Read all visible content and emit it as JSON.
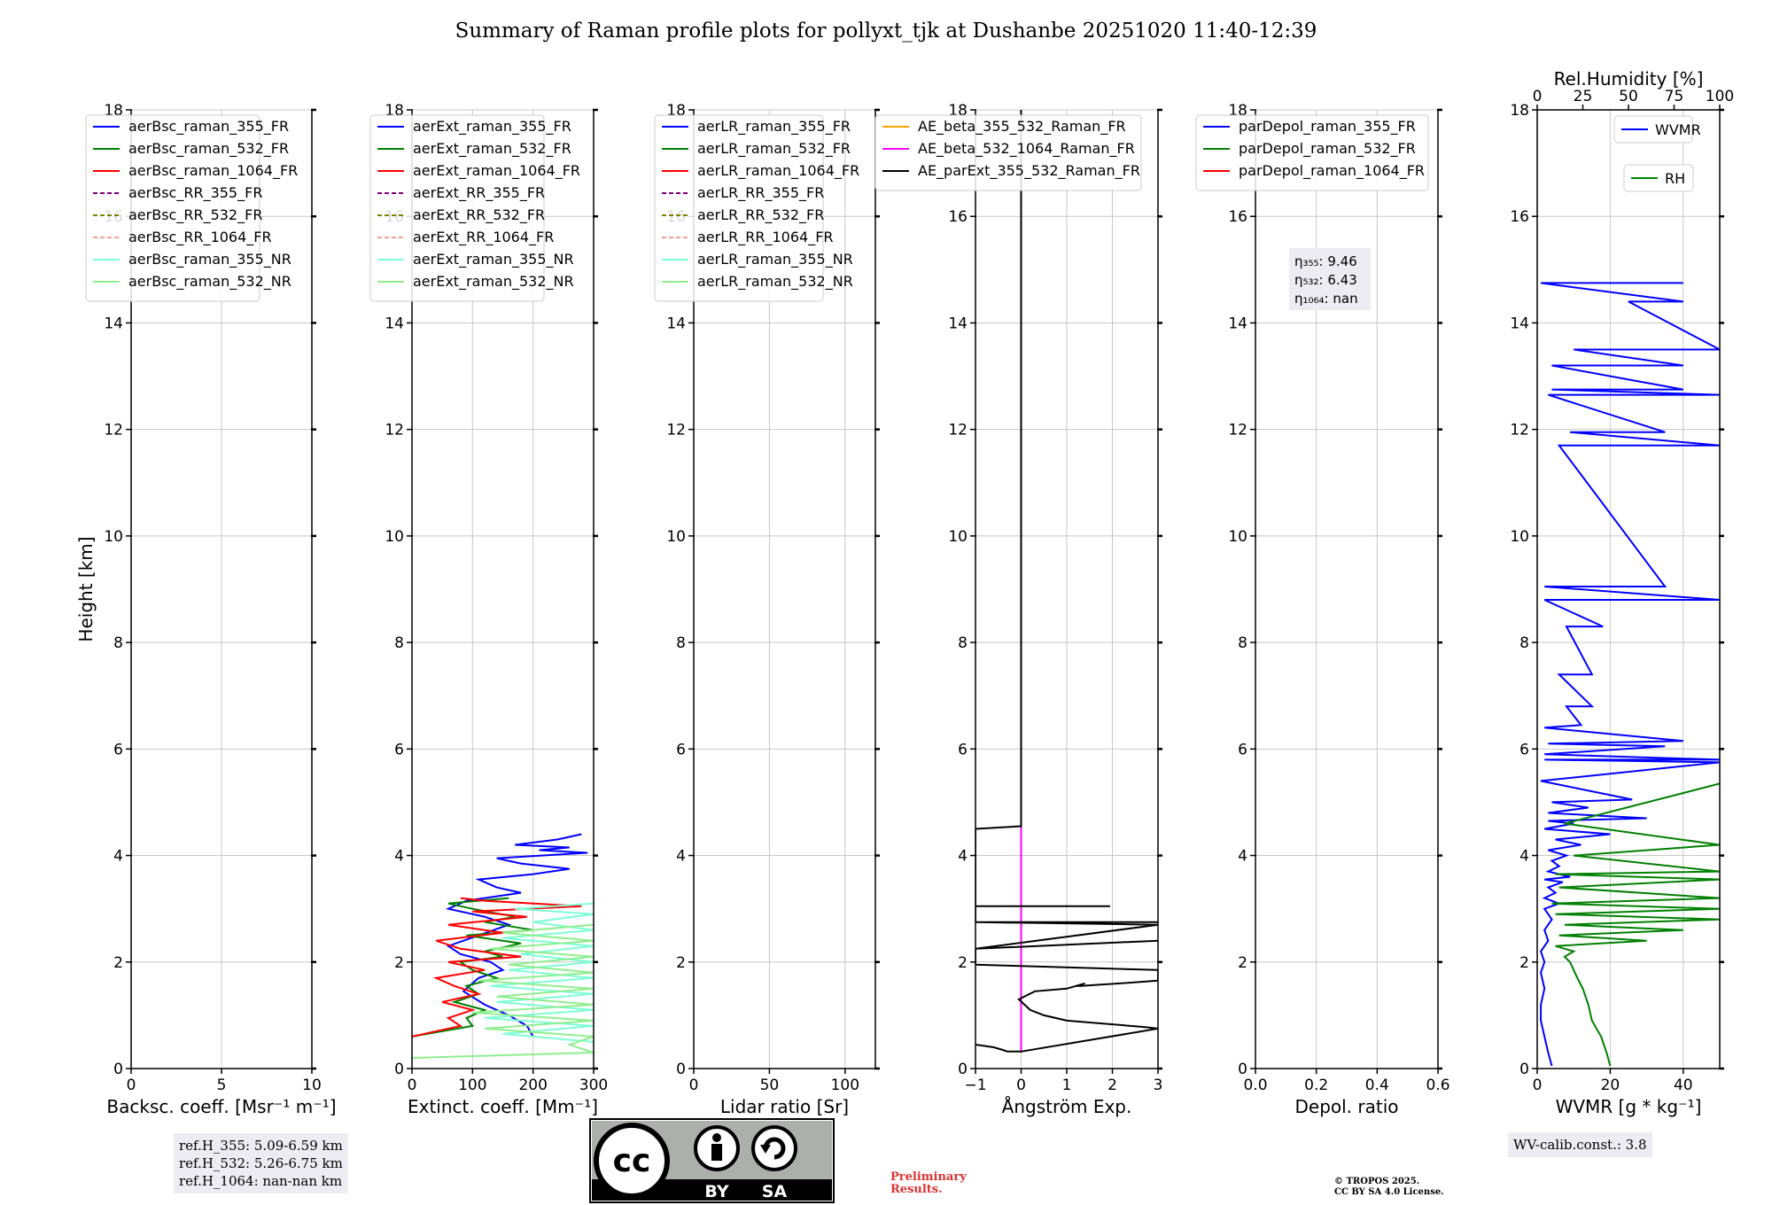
{
  "title": "Summary of Raman profile plots for pollyxt_tjk at Dushanbe 20251020 11:40-12:39",
  "chart_data": [
    {
      "type": "line",
      "xlabel": "Backsc. coeff. [Msr⁻¹ m⁻¹]",
      "ylabel": "Height [km]",
      "xlim": [
        0,
        10
      ],
      "ylim": [
        0,
        18
      ],
      "xticks": [
        0,
        5,
        10
      ],
      "yticks": [
        0,
        2,
        4,
        6,
        8,
        10,
        12,
        14,
        16,
        18
      ],
      "grid": true,
      "legend_position": "top-left",
      "series": [
        {
          "name": "aerBsc_raman_355_FR",
          "color": "#0000ff",
          "dash": "solid",
          "x": [],
          "y": []
        },
        {
          "name": "aerBsc_raman_532_FR",
          "color": "#008000",
          "dash": "solid",
          "x": [],
          "y": []
        },
        {
          "name": "aerBsc_raman_1064_FR",
          "color": "#ff0000",
          "dash": "solid",
          "x": [],
          "y": []
        },
        {
          "name": "aerBsc_RR_355_FR",
          "color": "#800080",
          "dash": "dashed",
          "x": [],
          "y": []
        },
        {
          "name": "aerBsc_RR_532_FR",
          "color": "#808000",
          "dash": "dashed",
          "x": [],
          "y": []
        },
        {
          "name": "aerBsc_RR_1064_FR",
          "color": "#f4a090",
          "dash": "dashed",
          "x": [],
          "y": []
        },
        {
          "name": "aerBsc_raman_355_NR",
          "color": "#7fffd4",
          "dash": "solid",
          "x": [],
          "y": []
        },
        {
          "name": "aerBsc_raman_532_NR",
          "color": "#90ee90",
          "dash": "solid",
          "x": [],
          "y": []
        }
      ]
    },
    {
      "type": "line",
      "xlabel": "Extinct. coeff. [Mm⁻¹]",
      "ylabel": "",
      "xlim": [
        0,
        300
      ],
      "ylim": [
        0,
        18
      ],
      "xticks": [
        0,
        100,
        200,
        300
      ],
      "yticks": [
        0,
        2,
        4,
        6,
        8,
        10,
        12,
        14,
        16,
        18
      ],
      "grid": true,
      "legend_position": "top-left",
      "series": [
        {
          "name": "aerExt_raman_355_FR",
          "color": "#0000ff",
          "dash": "solid",
          "x": [
            200,
            190,
            160,
            120,
            85,
            110,
            150,
            130,
            80,
            60,
            110,
            160,
            120,
            60,
            90,
            180,
            140,
            110,
            200,
            260,
            180,
            140,
            290,
            210,
            260,
            170,
            240,
            280
          ],
          "y": [
            0.6,
            0.8,
            1.0,
            1.2,
            1.45,
            1.7,
            1.85,
            2.0,
            2.15,
            2.3,
            2.5,
            2.7,
            2.85,
            3.0,
            3.15,
            3.3,
            3.4,
            3.55,
            3.65,
            3.75,
            3.85,
            3.95,
            4.05,
            4.1,
            4.15,
            4.2,
            4.3,
            4.4
          ]
        },
        {
          "name": "aerExt_raman_532_FR",
          "color": "#008000",
          "dash": "solid",
          "x": [
            0,
            100,
            90,
            120,
            70,
            110,
            90,
            140,
            100,
            80,
            150,
            120,
            180,
            90,
            200,
            120,
            170,
            100,
            60,
            160
          ],
          "y": [
            0.6,
            0.8,
            0.95,
            1.1,
            1.25,
            1.4,
            1.55,
            1.7,
            1.85,
            2.0,
            2.1,
            2.2,
            2.35,
            2.5,
            2.6,
            2.75,
            2.85,
            3.0,
            3.1,
            3.2
          ]
        },
        {
          "name": "aerExt_raman_1064_FR",
          "color": "#ff0000",
          "dash": "solid",
          "x": [
            0,
            80,
            60,
            100,
            50,
            110,
            70,
            40,
            120,
            60,
            180,
            80,
            40,
            150,
            60,
            190,
            100,
            280,
            120,
            80
          ],
          "y": [
            0.6,
            0.8,
            0.95,
            1.1,
            1.25,
            1.4,
            1.55,
            1.7,
            1.85,
            2.0,
            2.1,
            2.25,
            2.4,
            2.55,
            2.7,
            2.85,
            2.95,
            3.05,
            3.15,
            3.2
          ]
        },
        {
          "name": "aerExt_RR_355_FR",
          "color": "#800080",
          "dash": "dashed",
          "x": [],
          "y": []
        },
        {
          "name": "aerExt_RR_532_FR",
          "color": "#808000",
          "dash": "dashed",
          "x": [],
          "y": []
        },
        {
          "name": "aerExt_RR_1064_FR",
          "color": "#f4a090",
          "dash": "dashed",
          "x": [],
          "y": []
        },
        {
          "name": "aerExt_raman_355_NR",
          "color": "#7fffd4",
          "dash": "solid",
          "x": [
            300,
            150,
            300,
            120,
            300,
            140,
            300,
            130,
            300,
            160,
            300,
            180,
            300,
            150,
            300,
            200,
            300,
            170,
            300
          ],
          "y": [
            0.5,
            0.65,
            0.8,
            0.95,
            1.1,
            1.25,
            1.4,
            1.55,
            1.7,
            1.85,
            2.0,
            2.15,
            2.3,
            2.45,
            2.6,
            2.75,
            2.9,
            3.0,
            3.1
          ]
        },
        {
          "name": "aerExt_raman_532_NR",
          "color": "#90ee90",
          "dash": "solid",
          "x": [
            0,
            300,
            260,
            300,
            120,
            300,
            100,
            300,
            140,
            300,
            110,
            300,
            160,
            300,
            130,
            300,
            150,
            300
          ],
          "y": [
            0.2,
            0.3,
            0.45,
            0.6,
            0.75,
            0.9,
            1.05,
            1.2,
            1.35,
            1.5,
            1.65,
            1.8,
            1.95,
            2.1,
            2.25,
            2.4,
            2.55,
            2.7
          ]
        }
      ]
    },
    {
      "type": "line",
      "xlabel": "Lidar ratio [Sr]",
      "ylabel": "",
      "xlim": [
        0,
        120
      ],
      "ylim": [
        0,
        18
      ],
      "xticks": [
        0,
        50,
        100
      ],
      "yticks": [
        0,
        2,
        4,
        6,
        8,
        10,
        12,
        14,
        16,
        18
      ],
      "grid": true,
      "legend_position": "top-left",
      "series": [
        {
          "name": "aerLR_raman_355_FR",
          "color": "#0000ff",
          "dash": "solid",
          "x": [],
          "y": []
        },
        {
          "name": "aerLR_raman_532_FR",
          "color": "#008000",
          "dash": "solid",
          "x": [],
          "y": []
        },
        {
          "name": "aerLR_raman_1064_FR",
          "color": "#ff0000",
          "dash": "solid",
          "x": [],
          "y": []
        },
        {
          "name": "aerLR_RR_355_FR",
          "color": "#800080",
          "dash": "dashed",
          "x": [],
          "y": []
        },
        {
          "name": "aerLR_RR_532_FR",
          "color": "#808000",
          "dash": "dashed",
          "x": [],
          "y": []
        },
        {
          "name": "aerLR_RR_1064_FR",
          "color": "#f4a090",
          "dash": "dashed",
          "x": [],
          "y": []
        },
        {
          "name": "aerLR_raman_355_NR",
          "color": "#7fffd4",
          "dash": "solid",
          "x": [],
          "y": []
        },
        {
          "name": "aerLR_raman_532_NR",
          "color": "#90ee90",
          "dash": "solid",
          "x": [],
          "y": []
        }
      ]
    },
    {
      "type": "line",
      "xlabel": "Ångström Exp.",
      "ylabel": "",
      "xlim": [
        -1,
        3
      ],
      "ylim": [
        0,
        18
      ],
      "xticks": [
        -1,
        0,
        1,
        2,
        3
      ],
      "yticks": [
        0,
        2,
        4,
        6,
        8,
        10,
        12,
        14,
        16,
        18
      ],
      "grid": true,
      "legend_position": "top-left",
      "series": [
        {
          "name": "AE_beta_355_532_Raman_FR",
          "color": "#ffa500",
          "dash": "solid",
          "x": [],
          "y": []
        },
        {
          "name": "AE_beta_532_1064_Raman_FR",
          "color": "#ff00ff",
          "dash": "solid",
          "x": [
            0,
            0
          ],
          "y": [
            0.3,
            4.55
          ]
        },
        {
          "name": "AE_parExt_355_532_Raman_FR",
          "color": "#000000",
          "dash": "solid",
          "x": [
            -1,
            -0.6,
            -0.4,
            -0.3,
            0,
            0,
            0,
            3,
            2.7,
            1.0,
            0.5,
            0.2,
            -0.05,
            0.3,
            1.0,
            1.4,
            1.2,
            1.3,
            2.2,
            3,
            3,
            -1,
            -1,
            3,
            -1,
            3,
            -1,
            3,
            3,
            -1,
            -1,
            1.95,
            1.95,
            -1,
            -1,
            0,
            0,
            0
          ],
          "y": [
            0.45,
            0.4,
            0.35,
            0.32,
            0.32,
            0.32,
            0.32,
            0.75,
            0.78,
            0.9,
            1.0,
            1.1,
            1.3,
            1.45,
            1.5,
            1.6,
            1.55,
            1.55,
            1.6,
            1.65,
            1.85,
            1.95,
            2.25,
            2.4,
            2.25,
            2.7,
            2.75,
            2.75,
            2.75,
            2.75,
            3.05,
            3.05,
            3.05,
            3.05,
            4.5,
            4.55,
            4.55,
            18
          ]
        }
      ]
    },
    {
      "type": "line",
      "xlabel": "Depol. ratio",
      "ylabel": "",
      "xlim": [
        0,
        0.6
      ],
      "ylim": [
        0,
        18
      ],
      "xticks": [
        0.0,
        0.2,
        0.4,
        0.6
      ],
      "yticks": [
        0,
        2,
        4,
        6,
        8,
        10,
        12,
        14,
        16,
        18
      ],
      "grid": true,
      "legend_position": "top-left",
      "series": [
        {
          "name": "parDepol_raman_355_FR",
          "color": "#0000ff",
          "dash": "solid",
          "x": [],
          "y": []
        },
        {
          "name": "parDepol_raman_532_FR",
          "color": "#008000",
          "dash": "solid",
          "x": [],
          "y": []
        },
        {
          "name": "parDepol_raman_1064_FR",
          "color": "#ff0000",
          "dash": "solid",
          "x": [],
          "y": []
        }
      ],
      "annotations": [
        "η₃₅₅: 9.46",
        "η₅₃₂: 6.43",
        "η₁₀₆₄: nan"
      ]
    },
    {
      "type": "line",
      "xlabel": "WVMR [g * kg⁻¹]",
      "xlabel_top": "Rel.Humidity [%]",
      "ylabel": "",
      "xlim": [
        0,
        50
      ],
      "xlim_top": [
        0,
        100
      ],
      "ylim": [
        0,
        18
      ],
      "xticks": [
        0,
        20,
        40
      ],
      "xticks_top": [
        0,
        25,
        50,
        75,
        100
      ],
      "yticks": [
        0,
        2,
        4,
        6,
        8,
        10,
        12,
        14,
        16,
        18
      ],
      "grid": true,
      "series": [
        {
          "name": "WVMR",
          "color": "#0000ff",
          "dash": "solid",
          "x": [
            4,
            3,
            2,
            1,
            1,
            2,
            1,
            2,
            1,
            3,
            2,
            4,
            2,
            6,
            2,
            5,
            3,
            7,
            2,
            9,
            3,
            6,
            4,
            8,
            3,
            12,
            5,
            20,
            2,
            10,
            3,
            30,
            3,
            14,
            4,
            26,
            1,
            50,
            2,
            50,
            2,
            35,
            3,
            40,
            2,
            12,
            8,
            15,
            6,
            15,
            8,
            18,
            2,
            50,
            2,
            35,
            6,
            50,
            9,
            35,
            3,
            50,
            4,
            40,
            4,
            40,
            10,
            50,
            25,
            40,
            1,
            40,
            8,
            12
          ],
          "y": [
            0.05,
            0.3,
            0.6,
            0.9,
            1.2,
            1.5,
            1.8,
            2.0,
            2.2,
            2.4,
            2.6,
            2.8,
            3.0,
            3.1,
            3.2,
            3.3,
            3.4,
            3.5,
            3.55,
            3.6,
            3.7,
            3.8,
            3.9,
            4.0,
            4.1,
            4.2,
            4.3,
            4.4,
            4.5,
            4.6,
            4.65,
            4.7,
            4.8,
            4.9,
            5.0,
            5.05,
            5.4,
            5.75,
            5.8,
            5.8,
            5.9,
            6.05,
            6.1,
            6.15,
            6.4,
            6.45,
            6.8,
            6.8,
            7.4,
            7.4,
            8.3,
            8.3,
            8.8,
            8.8,
            9.05,
            9.05,
            11.7,
            11.7,
            11.95,
            11.95,
            12.65,
            12.65,
            12.75,
            12.75,
            13.2,
            13.2,
            13.5,
            13.5,
            14.4,
            14.4,
            14.75,
            14.75,
            14.75,
            14.75
          ]
        },
        {
          "name": "RH",
          "color": "#008000",
          "dash": "solid",
          "x": [
            40,
            38,
            35,
            30,
            28,
            25,
            22,
            20,
            18,
            15,
            20,
            10,
            60,
            12,
            80,
            15,
            100,
            10,
            100,
            8,
            100,
            12,
            100,
            10,
            100,
            20,
            100,
            15,
            100
          ],
          "y": [
            0.05,
            0.3,
            0.6,
            0.9,
            1.2,
            1.5,
            1.7,
            1.85,
            2.0,
            2.1,
            2.2,
            2.3,
            2.4,
            2.5,
            2.6,
            2.7,
            2.8,
            2.9,
            3.0,
            3.1,
            3.2,
            3.4,
            3.55,
            3.65,
            3.7,
            4.0,
            4.2,
            4.6,
            5.35
          ]
        }
      ]
    }
  ],
  "ref_box": [
    "ref.H_355: 5.09-6.59 km",
    "ref.H_532: 5.26-6.75 km",
    "ref.H_1064: nan-nan km"
  ],
  "wv_box": "WV-calib.const.: 3.8",
  "badge": {
    "cc": "cc",
    "by": "BY",
    "sa": "SA"
  },
  "prelim": [
    "Preliminary",
    "Results."
  ],
  "license": [
    "© TROPOS 2025.",
    "CC BY SA 4.0 License."
  ]
}
